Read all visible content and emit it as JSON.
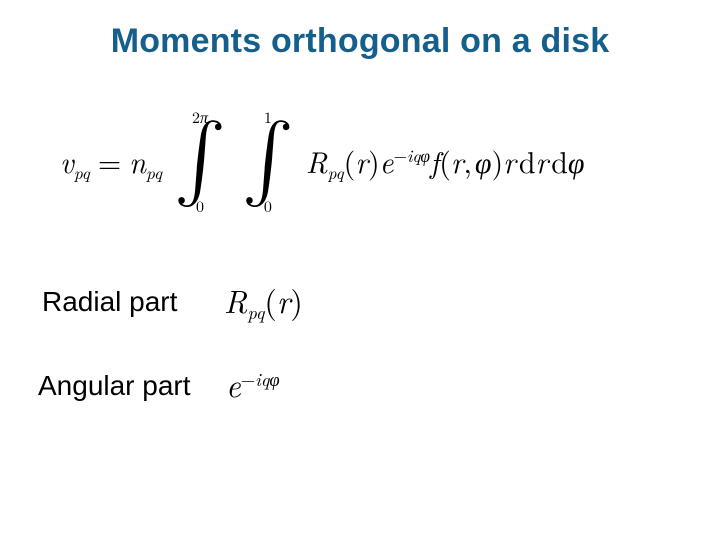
{
  "title": {
    "text": "Moments orthogonal on a disk",
    "color": "#155f8d"
  },
  "formula": {
    "lhs_var": "v",
    "lhs_sub": "pq",
    "coef_var": "n",
    "coef_sub": "pq",
    "int1": {
      "lower": "0",
      "upper_num": "2",
      "upper_sym": "π"
    },
    "int2": {
      "lower": "0",
      "upper": "1"
    },
    "R": "R",
    "R_sub": "pq",
    "r": "r",
    "exp_base": "e",
    "exp_minus": "−",
    "exp_i": "i",
    "exp_q": "q",
    "exp_phi": "φ",
    "f": "f",
    "phi": "φ",
    "d": "d",
    "equals": "="
  },
  "radial": {
    "label": "Radial part",
    "R": "R",
    "R_sub": "pq",
    "r": "r"
  },
  "angular": {
    "label": "Angular part",
    "exp_base": "e",
    "exp_minus": "−",
    "exp_i": "i",
    "exp_q": "q",
    "exp_phi": "φ"
  },
  "colors": {
    "title": "#155f8d",
    "text": "#000000",
    "bg": "#ffffff"
  }
}
